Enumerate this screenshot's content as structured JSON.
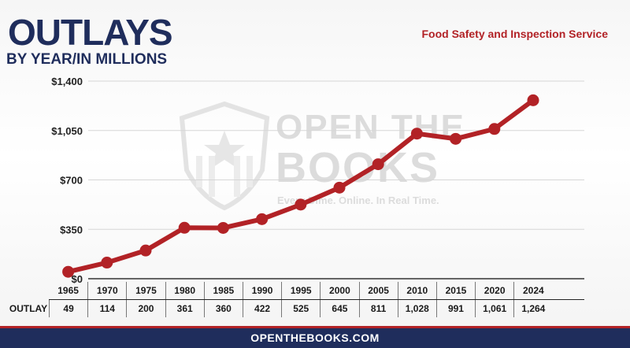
{
  "header": {
    "title": "OUTLAYS",
    "subtitle": "BY YEAR/IN MILLIONS",
    "agency": "Food Safety and Inspection Service"
  },
  "watermark": {
    "line1": "OPEN THE",
    "line2": "BOOKS",
    "tagline": "Every Dime. Online. In Real Time."
  },
  "table": {
    "row_label": "OUTLAY"
  },
  "footer": {
    "text": "OPENTHEBOOKS.COM"
  },
  "colors": {
    "line": "#b22226",
    "navy": "#1f2d5c",
    "grid": "#d6d6d6"
  },
  "chart_data": {
    "type": "line",
    "categories": [
      "1965",
      "1970",
      "1975",
      "1980",
      "1985",
      "1990",
      "1995",
      "2000",
      "2005",
      "2010",
      "2015",
      "2020",
      "2024"
    ],
    "values": [
      49,
      114,
      200,
      361,
      360,
      422,
      525,
      645,
      811,
      1028,
      991,
      1061,
      1264
    ],
    "value_labels": [
      "49",
      "114",
      "200",
      "361",
      "360",
      "422",
      "525",
      "645",
      "811",
      "1,028",
      "991",
      "1,061",
      "1,264"
    ],
    "yticks": [
      "$0",
      "$350",
      "$700",
      "$1,050",
      "$1,400"
    ],
    "ytick_values": [
      0,
      350,
      700,
      1050,
      1400
    ],
    "ylim": [
      0,
      1400
    ],
    "grid": true
  }
}
